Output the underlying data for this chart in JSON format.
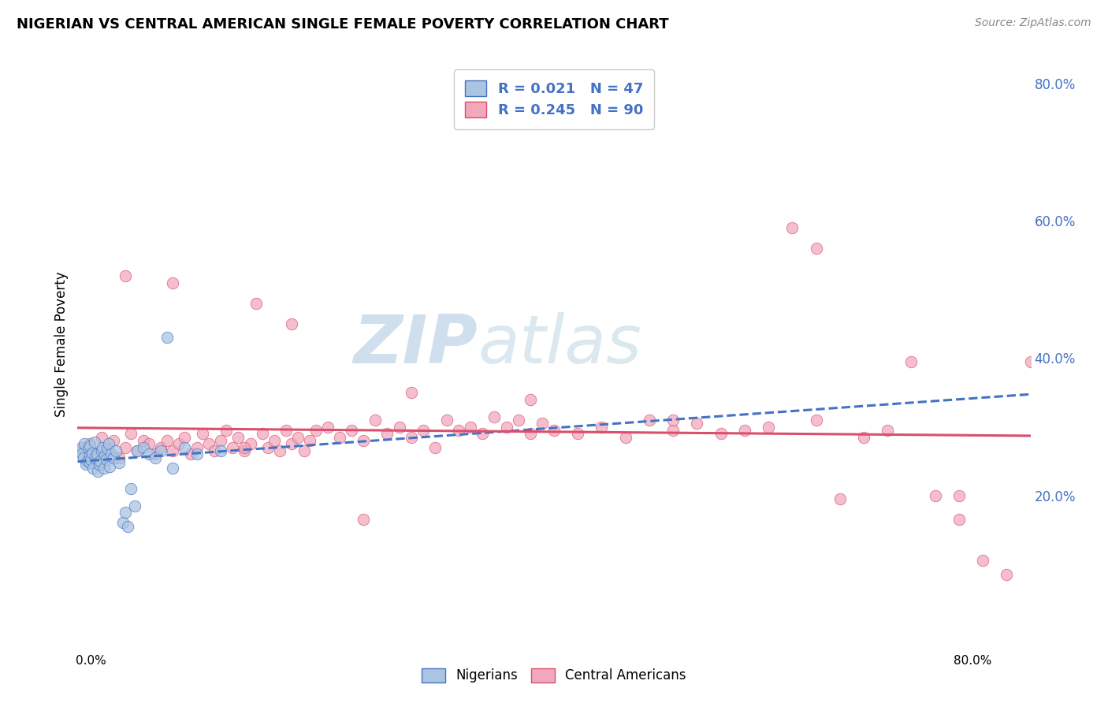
{
  "title": "NIGERIAN VS CENTRAL AMERICAN SINGLE FEMALE POVERTY CORRELATION CHART",
  "source": "Source: ZipAtlas.com",
  "ylabel": "Single Female Poverty",
  "legend_nigerians": "Nigerians",
  "legend_central": "Central Americans",
  "r_nigerian": "0.021",
  "n_nigerian": "47",
  "r_central": "0.245",
  "n_central": "90",
  "nigerian_color": "#aac4e2",
  "central_color": "#f2a8bc",
  "nigerian_line_color": "#4472c4",
  "central_line_color": "#d94f6e",
  "background_color": "#ffffff",
  "grid_color": "#c8d8ea",
  "watermark_zip": "ZIP",
  "watermark_atlas": "atlas",
  "watermark_color": "#d0dfee",
  "xmin": 0.0,
  "xmax": 0.8,
  "ymin": 0.0,
  "ymax": 0.84,
  "ytick_right": [
    0.2,
    0.4,
    0.6,
    0.8
  ],
  "nigerian_x": [
    0.002,
    0.003,
    0.004,
    0.005,
    0.006,
    0.007,
    0.008,
    0.009,
    0.01,
    0.01,
    0.01,
    0.011,
    0.012,
    0.013,
    0.014,
    0.015,
    0.016,
    0.017,
    0.018,
    0.019,
    0.02,
    0.021,
    0.022,
    0.023,
    0.024,
    0.025,
    0.026,
    0.027,
    0.028,
    0.03,
    0.032,
    0.035,
    0.038,
    0.04,
    0.042,
    0.045,
    0.048,
    0.05,
    0.055,
    0.06,
    0.065,
    0.07,
    0.075,
    0.08,
    0.09,
    0.1,
    0.12
  ],
  "nigerian_y": [
    0.265,
    0.27,
    0.26,
    0.255,
    0.275,
    0.245,
    0.25,
    0.268,
    0.272,
    0.248,
    0.258,
    0.252,
    0.262,
    0.24,
    0.278,
    0.255,
    0.26,
    0.235,
    0.245,
    0.25,
    0.265,
    0.27,
    0.24,
    0.258,
    0.252,
    0.268,
    0.275,
    0.242,
    0.26,
    0.255,
    0.265,
    0.248,
    0.16,
    0.175,
    0.155,
    0.21,
    0.185,
    0.265,
    0.27,
    0.26,
    0.255,
    0.265,
    0.43,
    0.24,
    0.27,
    0.26,
    0.265
  ],
  "central_x": [
    0.005,
    0.01,
    0.015,
    0.02,
    0.025,
    0.03,
    0.035,
    0.04,
    0.045,
    0.05,
    0.055,
    0.06,
    0.065,
    0.07,
    0.075,
    0.08,
    0.085,
    0.09,
    0.095,
    0.1,
    0.105,
    0.11,
    0.115,
    0.12,
    0.125,
    0.13,
    0.135,
    0.14,
    0.145,
    0.15,
    0.155,
    0.16,
    0.165,
    0.17,
    0.175,
    0.18,
    0.185,
    0.19,
    0.195,
    0.2,
    0.21,
    0.22,
    0.23,
    0.24,
    0.25,
    0.26,
    0.27,
    0.28,
    0.29,
    0.3,
    0.31,
    0.32,
    0.33,
    0.34,
    0.35,
    0.36,
    0.37,
    0.38,
    0.39,
    0.4,
    0.42,
    0.44,
    0.46,
    0.48,
    0.5,
    0.52,
    0.54,
    0.56,
    0.58,
    0.6,
    0.62,
    0.64,
    0.66,
    0.68,
    0.7,
    0.72,
    0.74,
    0.76,
    0.78,
    0.8,
    0.04,
    0.08,
    0.18,
    0.28,
    0.38,
    0.5,
    0.62,
    0.74,
    0.14,
    0.24
  ],
  "central_y": [
    0.27,
    0.275,
    0.26,
    0.285,
    0.265,
    0.28,
    0.255,
    0.27,
    0.29,
    0.265,
    0.28,
    0.275,
    0.26,
    0.27,
    0.28,
    0.265,
    0.275,
    0.285,
    0.26,
    0.27,
    0.29,
    0.275,
    0.265,
    0.28,
    0.295,
    0.27,
    0.285,
    0.265,
    0.275,
    0.48,
    0.29,
    0.27,
    0.28,
    0.265,
    0.295,
    0.275,
    0.285,
    0.265,
    0.28,
    0.295,
    0.3,
    0.285,
    0.295,
    0.28,
    0.31,
    0.29,
    0.3,
    0.285,
    0.295,
    0.27,
    0.31,
    0.295,
    0.3,
    0.29,
    0.315,
    0.3,
    0.31,
    0.29,
    0.305,
    0.295,
    0.29,
    0.3,
    0.285,
    0.31,
    0.295,
    0.305,
    0.29,
    0.295,
    0.3,
    0.59,
    0.56,
    0.195,
    0.285,
    0.295,
    0.395,
    0.2,
    0.165,
    0.105,
    0.085,
    0.395,
    0.52,
    0.51,
    0.45,
    0.35,
    0.34,
    0.31,
    0.31,
    0.2,
    0.27,
    0.165
  ]
}
